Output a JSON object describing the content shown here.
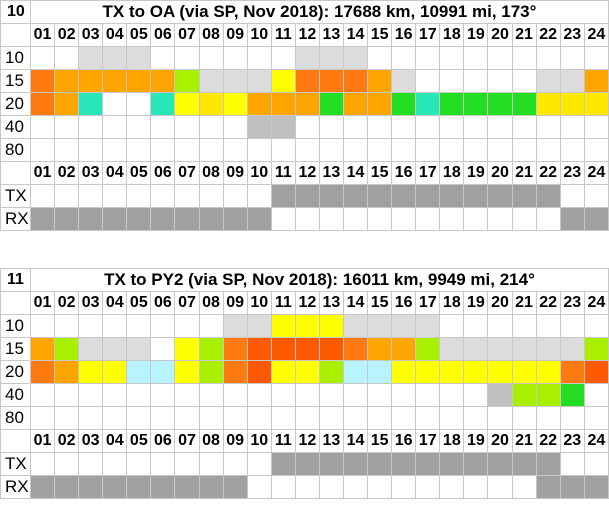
{
  "hours": [
    "01",
    "02",
    "03",
    "04",
    "05",
    "06",
    "07",
    "08",
    "09",
    "10",
    "11",
    "12",
    "13",
    "14",
    "15",
    "16",
    "17",
    "18",
    "19",
    "20",
    "21",
    "22",
    "23",
    "24"
  ],
  "legend": {
    "W": "#ffffff",
    "G": "#dcdcdc",
    "D": "#c0c0c0",
    "S": "#a0a0a0",
    "Y": "#ffff00",
    "y": "#ffe800",
    "o": "#ffa500",
    "O": "#ff7a10",
    "R": "#ff5a00",
    "L": "#a8f000",
    "C": "#29e6b8",
    "c": "#b8f4ff",
    "g": "#22dd22"
  },
  "panels": [
    {
      "index": "10",
      "title": "TX to OA (via SP, Nov 2018): 17688 km, 10991 mi, 173°",
      "bands": [
        {
          "label": "10",
          "cells": "WWGGGWWWWWWGGGWWWWWWWWWW"
        },
        {
          "label": "15",
          "cells": "OoooooLGGGYOOOoGWWWWWGGo"
        },
        {
          "label": "20",
          "cells": "OoCWWCYyYooogoogCggggyyy"
        },
        {
          "label": "40",
          "cells": "WWWWWWWWWDDWWWWWWWWWWWWW"
        },
        {
          "label": "80",
          "cells": "WWWWWWWWWWWWWWWWWWWWWWWW"
        }
      ],
      "tx": {
        "label": "TX",
        "cells": "WWWWWWWWWWSSSSSSSSSSSSWW"
      },
      "rx": {
        "label": "RX",
        "cells": "SSSSSSSSSSWWWWWWWWWWWWSS"
      }
    },
    {
      "index": "11",
      "title": "TX to PY2 (via SP, Nov 2018): 16011 km, 9949 mi, 214°",
      "bands": [
        {
          "label": "10",
          "cells": "WWWWWWWWGGYYYGGGGWWWWWWW"
        },
        {
          "label": "15",
          "cells": "oLGGGWYLORRRROooLGGGGGGL"
        },
        {
          "label": "20",
          "cells": "OoYYccYLORYYLccYYYYYYYOR"
        },
        {
          "label": "40",
          "cells": "WWWWWWWWWWWWWWWWWWWDLLgW"
        },
        {
          "label": "80",
          "cells": "WWWWWWWWWWWWWWWWWWWWWWWW"
        }
      ],
      "tx": {
        "label": "TX",
        "cells": "WWWWWWWWWWSSSSSSSSSSSSWW"
      },
      "rx": {
        "label": "RX",
        "cells": "SSSSSSSSSWWWWWWWWWWWWSSS"
      }
    }
  ]
}
